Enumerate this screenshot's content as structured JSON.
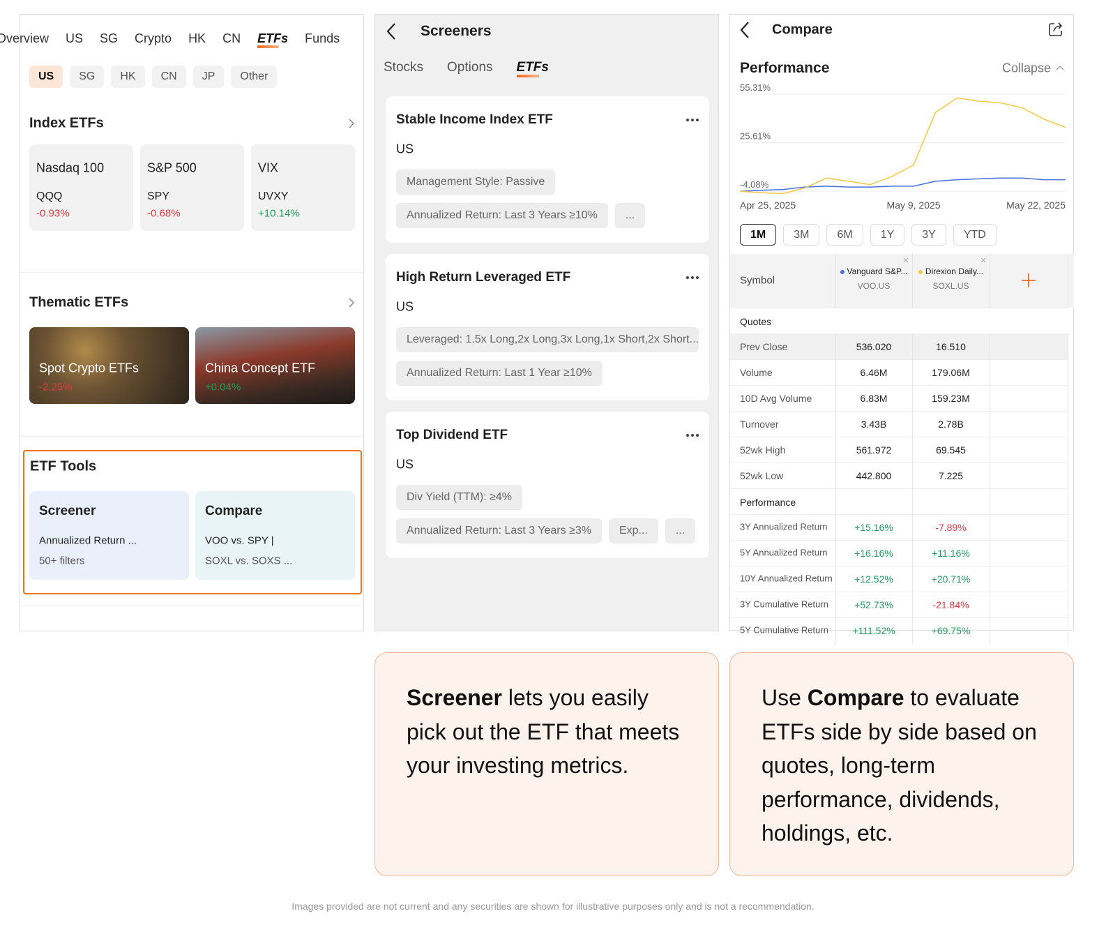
{
  "markets": {
    "tabs": [
      "Overview",
      "US",
      "SG",
      "Crypto",
      "HK",
      "CN",
      "ETFs",
      "Funds"
    ],
    "active_tab": 6,
    "regions": [
      "US",
      "SG",
      "HK",
      "CN",
      "JP",
      "Other"
    ],
    "active_region": 0,
    "index_title": "Index ETFs",
    "index_cards": [
      {
        "name": "Nasdaq 100",
        "symbol": "QQQ",
        "change": "-0.93%"
      },
      {
        "name": "S&P 500",
        "symbol": "SPY",
        "change": "-0.68%"
      },
      {
        "name": "VIX",
        "symbol": "UVXY",
        "change": "+10.14%"
      }
    ],
    "thematic_title": "Thematic ETFs",
    "thematic_cards": [
      {
        "name": "Spot Crypto ETFs",
        "change": "-2.25%"
      },
      {
        "name": "China Concept ETF",
        "change": "+0.04%"
      }
    ],
    "tools_title": "ETF Tools",
    "tools": [
      {
        "name": "Screener",
        "lines": [
          "Annualized Return ...",
          "50+ filters"
        ]
      },
      {
        "name": "Compare",
        "lines": [
          "VOO vs. SPY  |",
          "SOXL vs. SOXS ..."
        ]
      }
    ]
  },
  "screeners": {
    "title": "Screeners",
    "tabs": [
      "Stocks",
      "Options",
      "ETFs"
    ],
    "active_tab": 2,
    "cards": [
      {
        "title": "Stable Income Index ETF",
        "market": "US",
        "filters": [
          [
            "Management Style: Passive"
          ],
          [
            "Annualized Return: Last 3 Years ≥10%",
            "..."
          ]
        ]
      },
      {
        "title": "High Return Leveraged ETF",
        "market": "US",
        "filters": [
          [
            "Leveraged: 1.5x Long,2x Long,3x Long,1x Short,2x Short..."
          ],
          [
            "Annualized Return: Last 1 Year ≥10%"
          ]
        ]
      },
      {
        "title": "Top Dividend ETF",
        "market": "US",
        "filters": [
          [
            "Div Yield (TTM): ≥4%"
          ],
          [
            "Annualized Return: Last 3 Years ≥3%",
            "Exp...",
            "..."
          ]
        ]
      }
    ]
  },
  "compare": {
    "title": "Compare",
    "section": "Performance",
    "collapse": "Collapse",
    "chart": {
      "type": "line",
      "x": [
        "Apr 25, 2025",
        null,
        null,
        null,
        null,
        null,
        null,
        null,
        "May 9, 2025",
        null,
        null,
        null,
        null,
        null,
        null,
        "May 22, 2025"
      ],
      "series": [
        {
          "color": "#4a6fe3",
          "values": [
            -4.08,
            -3.5,
            -3,
            -1.5,
            -1,
            -1.5,
            -1.5,
            -1,
            -1,
            2,
            3,
            3.5,
            4,
            4,
            3,
            3
          ]
        },
        {
          "color": "#f5c842",
          "values": [
            -4.08,
            -5,
            -5.5,
            -2,
            4,
            2,
            0,
            5,
            12,
            44,
            53,
            51,
            50,
            47,
            40,
            35
          ]
        }
      ],
      "ylim": [
        -7,
        57
      ],
      "yticks": [
        {
          "value": -4.08,
          "label": "-4.08%"
        },
        {
          "value": 25.61,
          "label": "25.61%"
        },
        {
          "value": 55.31,
          "label": "55.31%"
        }
      ],
      "grid": true
    },
    "ranges": [
      "1M",
      "3M",
      "6M",
      "1Y",
      "3Y",
      "YTD"
    ],
    "active_range": 0,
    "symbol_label": "Symbol",
    "symbols": [
      {
        "name": "Vanguard S&P...",
        "code": "VOO.US"
      },
      {
        "name": "Direxion Daily...",
        "code": "SOXL.US"
      }
    ],
    "groups": [
      {
        "title": "Quotes",
        "rows": [
          [
            "Prev Close",
            "536.020",
            "16.510"
          ],
          [
            "Volume",
            "6.46M",
            "179.06M"
          ],
          [
            "10D Avg Volume",
            "6.83M",
            "159.23M"
          ],
          [
            "Turnover",
            "3.43B",
            "2.78B"
          ],
          [
            "52wk High",
            "561.972",
            "69.545"
          ],
          [
            "52wk Low",
            "442.800",
            "7.225"
          ]
        ]
      },
      {
        "title": "Performance",
        "rows": [
          [
            "3Y Annualized Return",
            "+15.16%",
            "-7.89%"
          ],
          [
            "5Y Annualized Return",
            "+16.16%",
            "+11.16%"
          ],
          [
            "10Y Annualized Return",
            "+12.52%",
            "+20.71%"
          ],
          [
            "3Y Cumulative Return",
            "+52.73%",
            "-21.84%"
          ],
          [
            "5Y Cumulative Return",
            "+111.52%",
            "+69.75%"
          ]
        ]
      }
    ]
  },
  "callouts": [
    {
      "bold": "Screener",
      "after": " lets you easily pick out the ETF that meets your investing metrics."
    },
    {
      "before": "Use ",
      "bold": "Compare",
      "after": " to evaluate ETFs side by side based on quotes, long-term performance, dividends, holdings, etc."
    }
  ],
  "disclaimer": "Images provided are not current and any securities are shown for illustrative purposes only and is not a recommendation."
}
